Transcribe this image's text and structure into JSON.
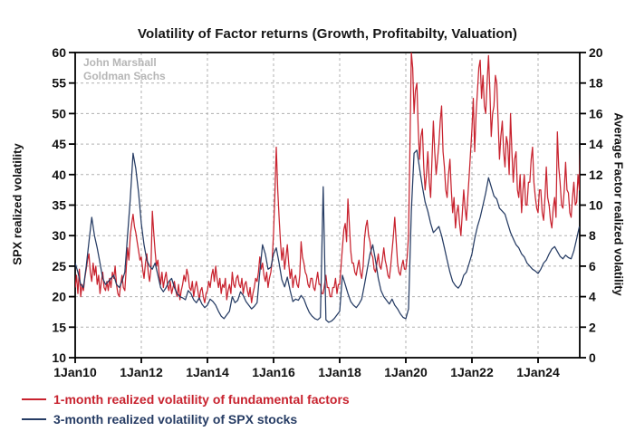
{
  "watermark": {
    "line1": "John Marshall",
    "line2": "Goldman Sachs"
  },
  "colors": {
    "factor_red": "#C8232F",
    "spx_navy": "#263C64",
    "gridline": "#B0B0B0",
    "axis": "#000000",
    "watermark_gray": "#B6B6B6"
  },
  "chart_data": {
    "type": "line",
    "title": "Volatility of Factor returns (Growth, Profitabilty, Valuation)",
    "grid": true,
    "legend_position": "bottom-left",
    "x_tick_labels": [
      "1Jan10",
      "1Jan12",
      "1Jan14",
      "1Jan16",
      "1Jan18",
      "1Jan20",
      "1Jan22",
      "1Jan24"
    ],
    "x_tick_years": [
      2010,
      2012,
      2014,
      2016,
      2018,
      2020,
      2022,
      2024
    ],
    "grid_years": [
      2012,
      2014,
      2016,
      2018,
      2020,
      2022,
      2024
    ],
    "x_range_years": [
      2010,
      2025.3
    ],
    "left_axis": {
      "label": "SPX realized volatility",
      "min": 10,
      "max": 60,
      "tick_step": 5
    },
    "right_axis": {
      "label": "Average Factor realized volatility",
      "min": 0,
      "max": 20,
      "tick_step": 2
    },
    "series": [
      {
        "name": "1-month realized volatility of fundamental factors",
        "axis": "right",
        "color": "#C8232F",
        "x_start": 2010,
        "points_per_year": 24,
        "values": [
          4.6,
          5.4,
          4.2,
          5.8,
          4.0,
          4.8,
          4.4,
          5.2,
          5.8,
          6.4,
          6.8,
          5.6,
          5.0,
          6.2,
          5.4,
          6.0,
          4.8,
          5.4,
          4.2,
          5.0,
          5.6,
          4.6,
          4.4,
          5.0,
          4.4,
          5.2,
          4.6,
          5.6,
          5.2,
          6.0,
          4.8,
          4.2,
          4.0,
          4.8,
          5.4,
          4.6,
          4.4,
          5.8,
          7.2,
          6.4,
          8.0,
          8.8,
          9.4,
          8.6,
          8.2,
          7.6,
          7.0,
          6.4,
          6.6,
          5.8,
          5.2,
          6.2,
          6.8,
          5.6,
          5.0,
          5.8,
          9.6,
          8.2,
          7.0,
          6.0,
          6.4,
          5.4,
          4.8,
          5.6,
          4.6,
          5.2,
          5.6,
          4.8,
          4.4,
          5.0,
          4.2,
          4.6,
          5.0,
          4.4,
          4.0,
          4.8,
          3.8,
          4.4,
          4.8,
          5.4,
          5.0,
          5.8,
          5.4,
          4.6,
          4.4,
          5.0,
          4.0,
          4.6,
          5.0,
          4.4,
          3.8,
          4.4,
          4.6,
          4.0,
          3.6,
          4.2,
          4.4,
          5.0,
          4.6,
          5.4,
          5.8,
          5.0,
          6.0,
          5.2,
          4.6,
          5.2,
          4.2,
          4.8,
          4.6,
          5.2,
          3.8,
          4.4,
          4.8,
          4.2,
          5.6,
          4.8,
          4.6,
          5.2,
          5.4,
          4.8,
          4.6,
          5.2,
          4.2,
          4.8,
          5.0,
          4.4,
          4.0,
          4.6,
          3.6,
          4.2,
          4.6,
          5.2,
          5.0,
          5.6,
          6.6,
          5.8,
          6.2,
          5.4,
          5.0,
          5.6,
          4.6,
          5.2,
          5.6,
          6.4,
          8.2,
          10.8,
          13.8,
          11.0,
          9.2,
          7.6,
          6.4,
          7.2,
          5.8,
          6.6,
          7.4,
          6.2,
          5.2,
          5.8,
          4.6,
          5.2,
          5.4,
          4.8,
          4.6,
          5.4,
          7.6,
          6.6,
          6.2,
          5.6,
          5.4,
          4.8,
          4.6,
          5.2,
          5.2,
          4.6,
          4.4,
          5.0,
          5.6,
          4.8,
          4.8,
          4.2,
          4.2,
          4.8,
          5.4,
          4.6,
          4.6,
          4.0,
          4.0,
          4.6,
          4.6,
          5.2,
          4.2,
          4.8,
          4.8,
          6.0,
          7.2,
          8.4,
          8.8,
          7.6,
          10.4,
          8.8,
          7.0,
          6.2,
          6.2,
          5.6,
          5.4,
          6.0,
          6.4,
          5.6,
          5.2,
          6.0,
          7.8,
          8.6,
          9.0,
          8.0,
          7.6,
          6.8,
          6.6,
          5.8,
          5.6,
          6.2,
          6.8,
          6.0,
          5.8,
          6.4,
          7.2,
          6.4,
          6.0,
          5.4,
          5.2,
          6.0,
          7.0,
          8.0,
          9.2,
          7.6,
          6.2,
          5.6,
          5.4,
          6.0,
          6.4,
          5.8,
          5.8,
          6.6,
          8.0,
          14.0,
          20.0,
          19.0,
          16.0,
          17.5,
          18.0,
          15.0,
          13.0,
          14.5,
          15.0,
          12.5,
          11.0,
          12.0,
          13.5,
          11.5,
          10.5,
          13.0,
          15.5,
          13.5,
          12.0,
          13.0,
          14.0,
          15.5,
          16.5,
          13.5,
          12.5,
          11.0,
          10.5,
          12.0,
          13.0,
          11.0,
          9.5,
          10.5,
          8.5,
          9.5,
          10.0,
          8.8,
          8.0,
          9.5,
          11.0,
          9.8,
          9.0,
          10.5,
          12.0,
          13.5,
          15.0,
          17.0,
          13.5,
          16.0,
          17.5,
          19.0,
          19.5,
          17.0,
          18.5,
          16.5,
          16.0,
          18.0,
          19.8,
          17.5,
          14.5,
          16.0,
          16.5,
          18.5,
          18.0,
          15.5,
          13.0,
          14.5,
          15.5,
          13.5,
          12.5,
          14.5,
          14.0,
          12.0,
          16.0,
          13.5,
          11.5,
          13.0,
          13.5,
          11.0,
          10.5,
          12.0,
          9.5,
          11.0,
          12.0,
          10.0,
          10.0,
          11.5,
          11.5,
          13.0,
          13.8,
          11.5,
          10.5,
          9.8,
          9.5,
          11.0,
          11.0,
          9.5,
          9.0,
          10.5,
          12.5,
          10.5,
          10.0,
          9.0,
          8.5,
          9.8,
          10.5,
          9.2,
          14.8,
          12.5,
          11.5,
          10.0,
          9.8,
          11.0,
          12.8,
          11.0,
          10.8,
          9.5,
          9.2,
          10.5,
          11.5,
          10.0,
          10.2,
          12.0,
          11.0,
          15.0
        ]
      },
      {
        "name": "3-month realized volatility of SPX stocks",
        "axis": "left",
        "color": "#263C64",
        "x_start": 2010,
        "points_per_year": 12,
        "values": [
          25.5,
          24.0,
          22.0,
          21.5,
          25.0,
          29.0,
          33.0,
          30.0,
          28.0,
          25.5,
          23.0,
          22.0,
          22.5,
          23.0,
          23.5,
          22.0,
          21.5,
          22.5,
          24.0,
          30.0,
          36.0,
          43.5,
          41.0,
          37.0,
          32.0,
          28.5,
          26.0,
          25.0,
          24.5,
          25.5,
          23.5,
          21.5,
          20.8,
          21.5,
          22.5,
          23.0,
          21.5,
          20.5,
          20.0,
          19.8,
          19.5,
          21.0,
          20.5,
          19.5,
          19.0,
          19.8,
          18.8,
          18.2,
          18.6,
          19.6,
          19.2,
          18.6,
          17.6,
          16.8,
          16.4,
          17.0,
          17.6,
          20.0,
          19.0,
          19.4,
          20.8,
          20.2,
          19.2,
          18.6,
          18.0,
          18.4,
          19.0,
          24.0,
          28.5,
          27.0,
          24.5,
          24.8,
          27.0,
          28.0,
          25.5,
          22.8,
          21.6,
          23.2,
          21.0,
          19.2,
          19.6,
          19.4,
          20.2,
          19.6,
          18.4,
          17.4,
          16.8,
          16.4,
          16.2,
          16.6,
          38.0,
          16.2,
          15.8,
          16.0,
          16.4,
          17.0,
          17.6,
          23.5,
          22.0,
          20.5,
          19.2,
          18.6,
          18.2,
          18.8,
          19.6,
          22.0,
          24.5,
          27.0,
          28.5,
          26.0,
          23.0,
          21.0,
          20.0,
          19.4,
          18.8,
          19.6,
          18.6,
          18.0,
          17.2,
          16.6,
          16.4,
          18.0,
          34.0,
          43.5,
          44.0,
          41.0,
          38.0,
          35.5,
          34.0,
          32.0,
          30.5,
          31.0,
          31.5,
          30.0,
          28.0,
          26.0,
          24.0,
          22.5,
          21.8,
          21.4,
          22.0,
          23.5,
          24.0,
          25.5,
          27.0,
          29.5,
          31.5,
          33.0,
          35.0,
          37.0,
          39.5,
          38.0,
          36.5,
          36.0,
          34.5,
          34.0,
          33.5,
          32.0,
          30.5,
          29.5,
          28.5,
          28.0,
          27.0,
          26.5,
          25.5,
          25.0,
          24.5,
          24.2,
          23.8,
          24.5,
          25.5,
          26.0,
          27.0,
          27.8,
          28.2,
          27.4,
          26.6,
          26.2,
          26.8,
          26.4,
          26.2,
          27.5,
          29.5,
          31.5
        ]
      }
    ]
  }
}
